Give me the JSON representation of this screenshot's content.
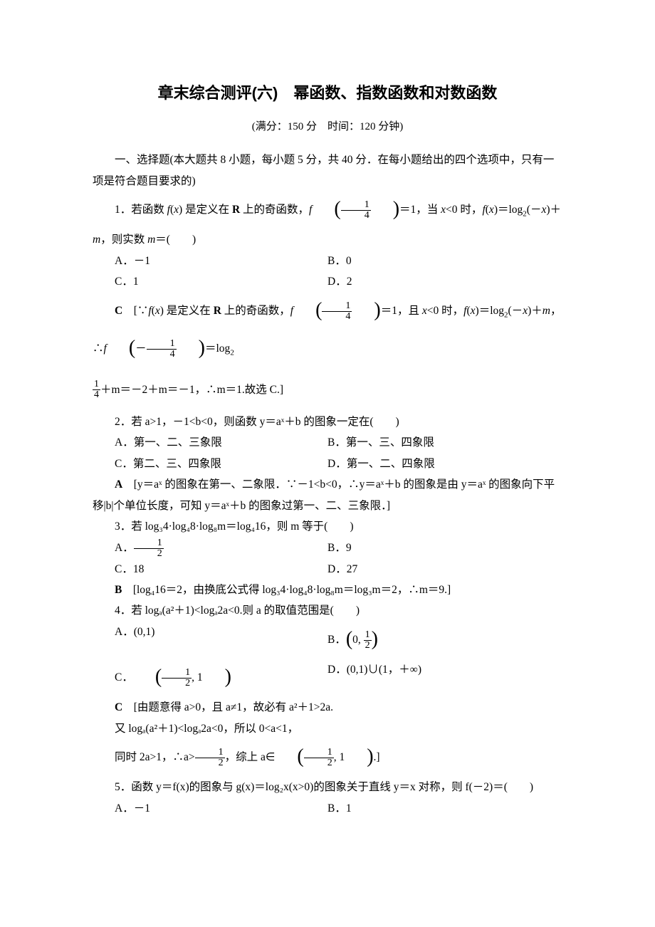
{
  "title": "章末综合测评(六)　幂函数、指数函数和对数函数",
  "subtitle": "(满分：150 分　时间：120 分钟)",
  "section1_intro": "一、选择题(本大题共 8 小题，每小题 5 分，共 40 分．在每小题给出的四个选项中，只有一项是符合题目要求的)",
  "q1": {
    "stem_pre": "1．若函数 ",
    "stem_mid": " 是定义在 ",
    "stem_r": " 上的奇函数，",
    "stem_after": "＝1，当 ",
    "stem_cond": " 时，",
    "stem_end": "，则实数 ",
    "blank": "＝(　　)",
    "A": "A．－1",
    "B": "B．0",
    "C": "C．1",
    "D": "D．2",
    "ans_label": "C",
    "ans_text1": "　[∵",
    "ans_text2": " 是定义在 ",
    "ans_text3": " 上的奇函数，",
    "ans_text4": "＝1，且 ",
    "ans_text5": " 时，",
    "ans_text6": "，∴",
    "ans_text7": "＝log",
    "ans_tail": "＋m＝－2＋m＝－1，∴m＝1.故选 C.]"
  },
  "q2": {
    "stem": "2．若 a>1，－1<b<0，则函数 y＝aˣ＋b 的图象一定在(　　)",
    "A": "A．第一、二、三象限",
    "B": "B．第一、三、四象限",
    "C": "C．第二、三、四象限",
    "D": "D．第一、二、四象限",
    "ans_label": "A",
    "ans_text": "　[y＝aˣ 的图象在第一、二象限．∵－1<b<0，∴y＝aˣ＋b 的图象是由 y＝aˣ 的图象向下平移|b|个单位长度，可知 y＝aˣ＋b 的图象过第一、二、三象限．]"
  },
  "q3": {
    "stem": "3．若 log₃4·log₄8·log₈m＝log₄16，则 m 等于(　　)",
    "A_pre": "A．",
    "B": "B．9",
    "C": "C．18",
    "D": "D．27",
    "ans_label": "B",
    "ans_text": "　[log₄16＝2，由换底公式得 log₃4·log₄8·log₈m＝log₃m＝2，∴m＝9.]"
  },
  "q4": {
    "stem": "4．若 logₐ(a²＋1)<logₐ2a<0.则 a 的取值范围是(　　)",
    "A": "A．(0,1)",
    "B_pre": "B．",
    "C_pre": "C．",
    "D": "D．(0,1)∪(1，＋∞)",
    "ans_label": "C",
    "ans_text1": "　[由题意得 a>0，且 a≠1，故必有 a²＋1>2a.",
    "ans_text2": "又 logₐ(a²＋1)<logₐ2a<0，所以 0<a<1，",
    "ans_text3_pre": "同时 2a>1，∴a>",
    "ans_text3_mid": "，综上 a∈",
    "ans_text3_end": ".]"
  },
  "q5": {
    "stem": "5．函数 y＝f(x)的图象与 g(x)＝log₂x(x>0)的图象关于直线 y＝x 对称，则 f(－2)＝(　　)",
    "A": "A．－1",
    "B": "B．1"
  }
}
